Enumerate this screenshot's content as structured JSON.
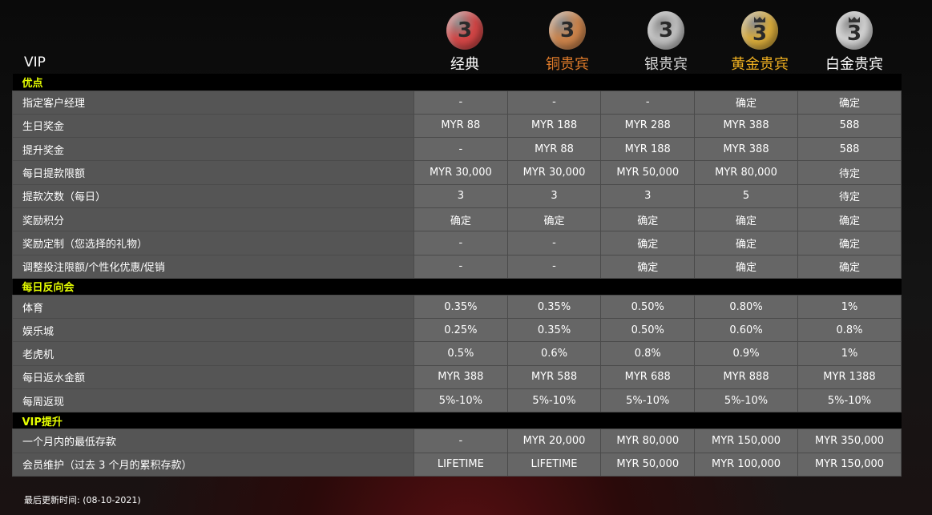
{
  "header": {
    "vip_label": "VIP",
    "tiers": [
      {
        "name": "经典",
        "color": "#ffffff",
        "coin": "#d04545",
        "icon": "coin-red-3-icon",
        "crown": false
      },
      {
        "name": "铜贵宾",
        "color": "#e07b2a",
        "coin": "#c9824a",
        "icon": "coin-bronze-3-icon",
        "crown": false
      },
      {
        "name": "银贵宾",
        "color": "#d8d8d8",
        "coin": "#bdbdbd",
        "icon": "coin-silver-3-icon",
        "crown": false
      },
      {
        "name": "黄金贵宾",
        "color": "#f0b020",
        "coin": "#d6a93a",
        "icon": "coin-gold-3-crown-icon",
        "crown": true
      },
      {
        "name": "白金贵宾",
        "color": "#ffffff",
        "coin": "#d0d0d0",
        "icon": "coin-platinum-3-crown-icon",
        "crown": true
      }
    ],
    "coin_digit": "3"
  },
  "sections": [
    {
      "title": "优点",
      "rows": [
        {
          "label": "指定客户经理",
          "values": [
            "-",
            "-",
            "-",
            "确定",
            "确定"
          ]
        },
        {
          "label": "生日奖金",
          "values": [
            "MYR 88",
            "MYR 188",
            "MYR 288",
            "MYR 388",
            "588"
          ]
        },
        {
          "label": "提升奖金",
          "values": [
            "-",
            "MYR 88",
            "MYR 188",
            "MYR 388",
            "588"
          ]
        },
        {
          "label": "每日提款限额",
          "values": [
            "MYR 30,000",
            "MYR 30,000",
            "MYR 50,000",
            "MYR 80,000",
            "待定"
          ]
        },
        {
          "label": "提款次数（每日）",
          "values": [
            "3",
            "3",
            "3",
            "5",
            "待定"
          ]
        },
        {
          "label": "奖励积分",
          "values": [
            "确定",
            "确定",
            "确定",
            "确定",
            "确定"
          ]
        },
        {
          "label": "奖励定制（您选择的礼物）",
          "values": [
            "-",
            "-",
            "确定",
            "确定",
            "确定"
          ]
        },
        {
          "label": "调整投注限额/个性化优惠/促销",
          "values": [
            "-",
            "-",
            "确定",
            "确定",
            "确定"
          ]
        }
      ]
    },
    {
      "title": "每日反向会",
      "rows": [
        {
          "label": "体育",
          "values": [
            "0.35%",
            "0.35%",
            "0.50%",
            "0.80%",
            "1%"
          ]
        },
        {
          "label": "娱乐城",
          "values": [
            "0.25%",
            "0.35%",
            "0.50%",
            "0.60%",
            "0.8%"
          ]
        },
        {
          "label": "老虎机",
          "values": [
            "0.5%",
            "0.6%",
            "0.8%",
            "0.9%",
            "1%"
          ]
        },
        {
          "label": "每日返水金额",
          "values": [
            "MYR 388",
            "MYR 588",
            "MYR 688",
            "MYR 888",
            "MYR 1388"
          ]
        },
        {
          "label": "每周返现",
          "values": [
            "5%-10%",
            "5%-10%",
            "5%-10%",
            "5%-10%",
            "5%-10%"
          ]
        }
      ]
    },
    {
      "title": "VIP提升",
      "rows": [
        {
          "label": "一个月内的最低存款",
          "values": [
            "-",
            "MYR 20,000",
            "MYR 80,000",
            "MYR 150,000",
            "MYR 350,000"
          ]
        },
        {
          "label": "会员维护（过去 3 个月的累积存款）",
          "values": [
            "LIFETIME",
            "LIFETIME",
            "MYR 50,000",
            "MYR 100,000",
            "MYR 150,000"
          ]
        }
      ]
    }
  ],
  "footer": {
    "last_updated": "最后更新时间: (08-10-2021)"
  }
}
